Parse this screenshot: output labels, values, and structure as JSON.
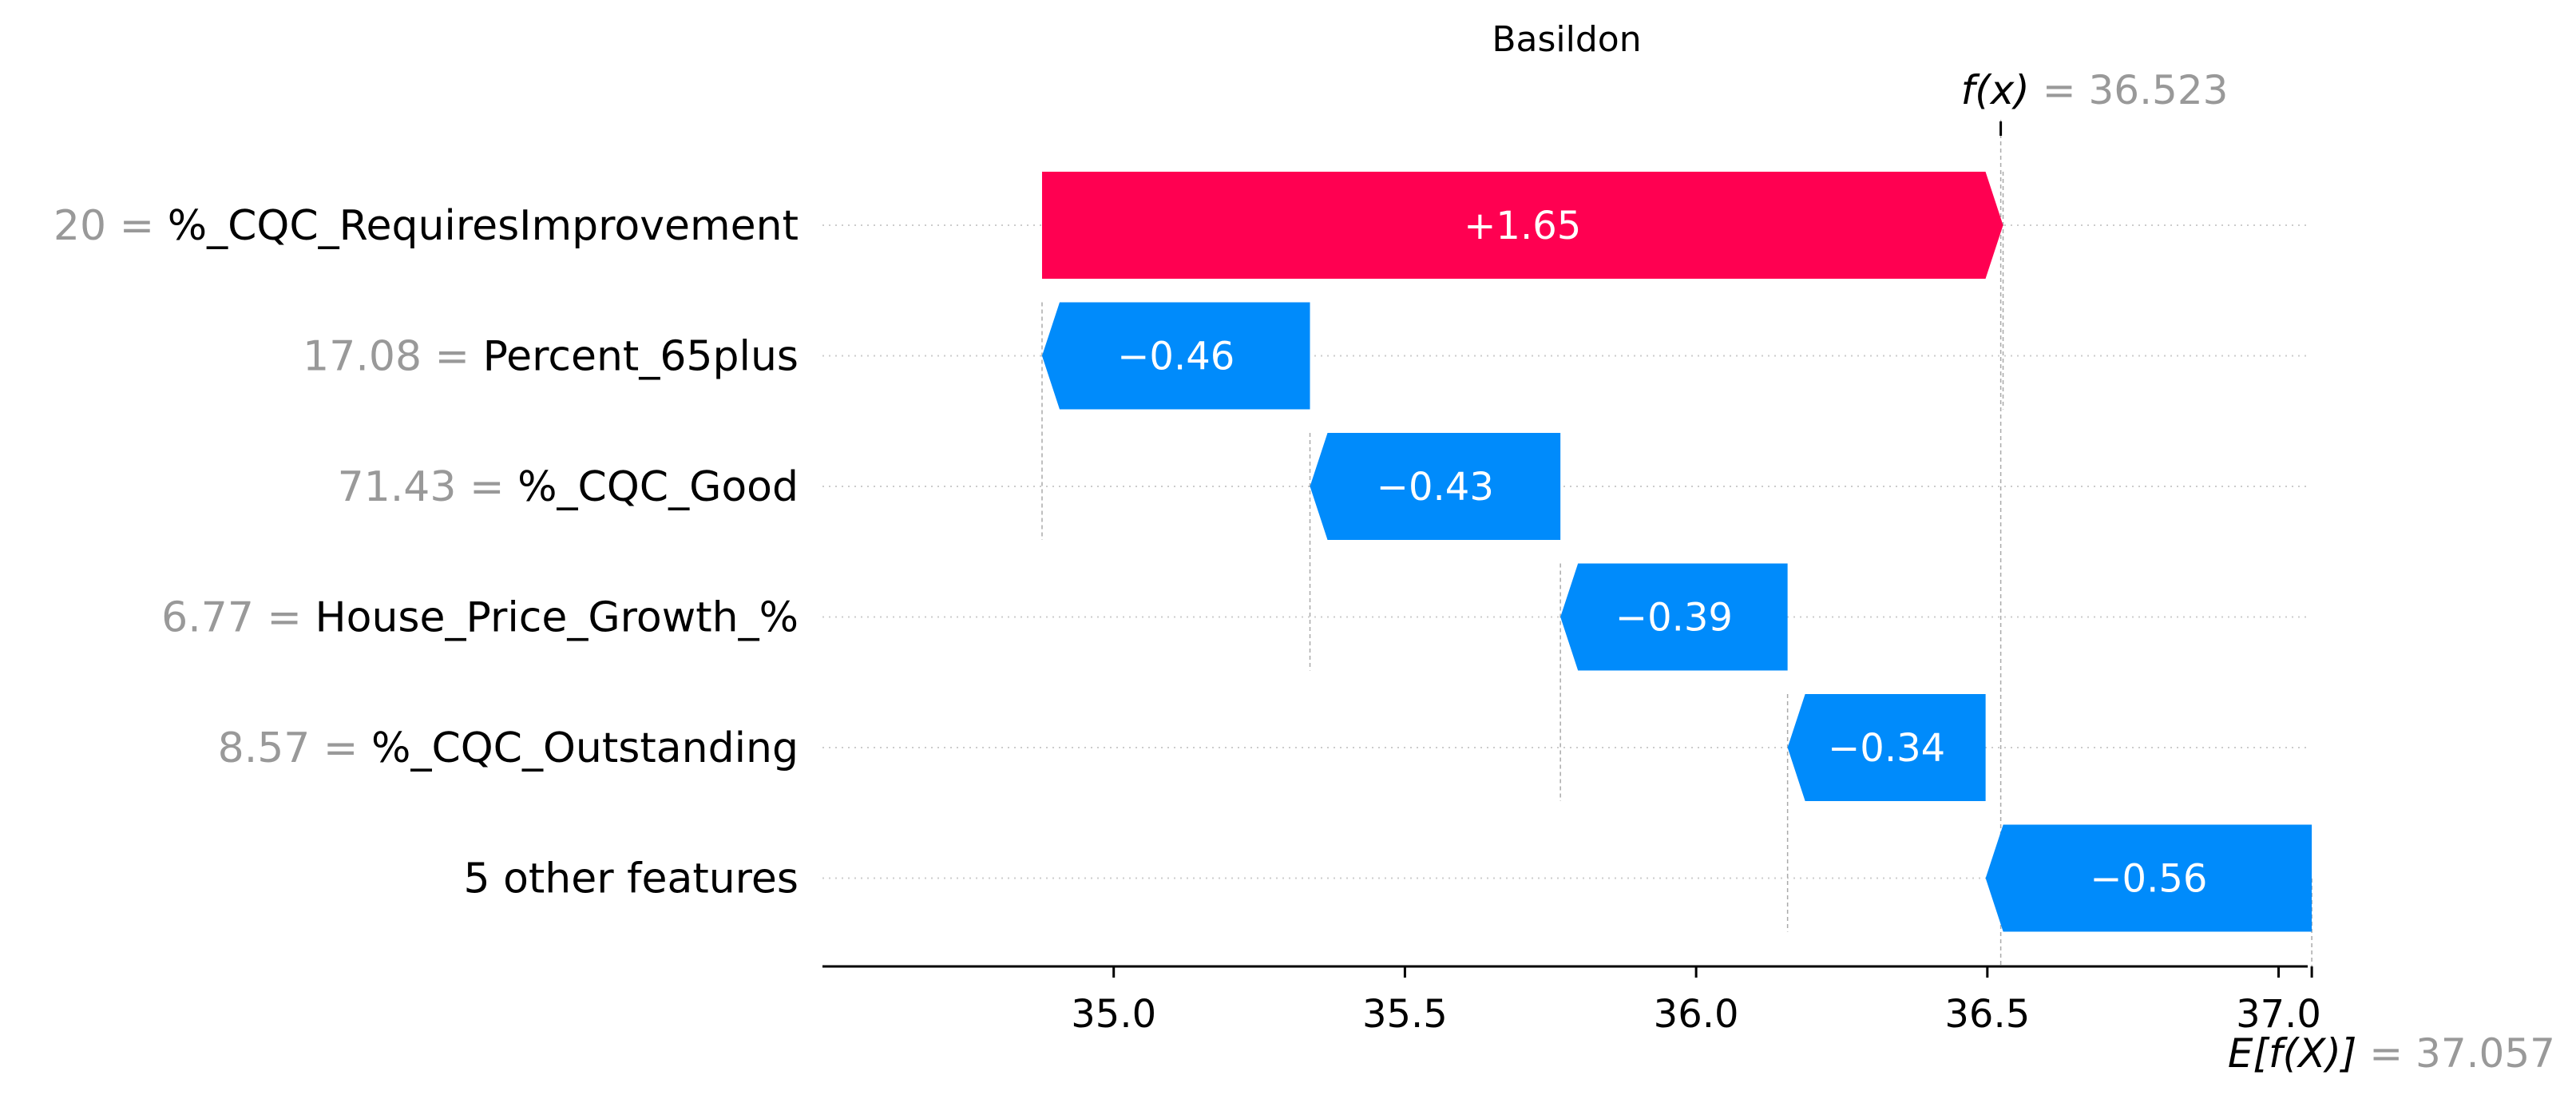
{
  "chart_data": {
    "type": "waterfall",
    "title": "Basildon",
    "xlim": [
      34.5,
      37.05
    ],
    "x_ticks": [
      35.0,
      35.5,
      36.0,
      36.5,
      37.0
    ],
    "tick_labels": [
      "35.0",
      "35.5",
      "36.0",
      "36.5",
      "37.0"
    ],
    "fx": {
      "label": "f(x)",
      "equals": "=",
      "value": 36.523,
      "display": "36.523"
    },
    "efx": {
      "label": "E[f(X)]",
      "equals": "=",
      "value": 37.057,
      "display": "37.057"
    },
    "features": [
      {
        "value": "20",
        "equals": "=",
        "name": "%_CQC_RequiresImprovement",
        "contribution": 1.65,
        "contribution_label": "+1.65"
      },
      {
        "value": "17.08",
        "equals": "=",
        "name": "Percent_65plus",
        "contribution": -0.46,
        "contribution_label": "−0.46"
      },
      {
        "value": "71.43",
        "equals": "=",
        "name": "%_CQC_Good",
        "contribution": -0.43,
        "contribution_label": "−0.43"
      },
      {
        "value": "6.77",
        "equals": "=",
        "name": "House_Price_Growth_%",
        "contribution": -0.39,
        "contribution_label": "−0.39"
      },
      {
        "value": "8.57",
        "equals": "=",
        "name": "%_CQC_Outstanding",
        "contribution": -0.34,
        "contribution_label": "−0.34"
      },
      {
        "value": "",
        "equals": "",
        "name": "5 other features",
        "contribution": -0.56,
        "contribution_label": "−0.56"
      }
    ],
    "colors": {
      "positive": "#ff0051",
      "negative": "#008bfb",
      "axis": "#000000",
      "grid": "#cccccc",
      "muted": "#999999"
    }
  }
}
